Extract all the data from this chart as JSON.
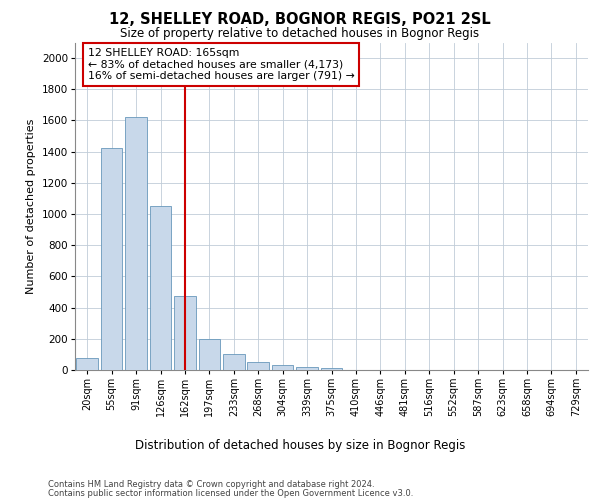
{
  "title_line1": "12, SHELLEY ROAD, BOGNOR REGIS, PO21 2SL",
  "title_line2": "Size of property relative to detached houses in Bognor Regis",
  "xlabel": "Distribution of detached houses by size in Bognor Regis",
  "ylabel": "Number of detached properties",
  "categories": [
    "20sqm",
    "55sqm",
    "91sqm",
    "126sqm",
    "162sqm",
    "197sqm",
    "233sqm",
    "268sqm",
    "304sqm",
    "339sqm",
    "375sqm",
    "410sqm",
    "446sqm",
    "481sqm",
    "516sqm",
    "552sqm",
    "587sqm",
    "623sqm",
    "658sqm",
    "694sqm",
    "729sqm"
  ],
  "values": [
    75,
    1425,
    1625,
    1050,
    475,
    200,
    100,
    50,
    30,
    20,
    10,
    0,
    0,
    0,
    0,
    0,
    0,
    0,
    0,
    0,
    0
  ],
  "bar_color": "#c8d8ea",
  "bar_edgecolor": "#6898bb",
  "vline_x_index": 4,
  "vline_color": "#cc0000",
  "annotation_text": "12 SHELLEY ROAD: 165sqm\n← 83% of detached houses are smaller (4,173)\n16% of semi-detached houses are larger (791) →",
  "annotation_box_facecolor": "#ffffff",
  "annotation_box_edgecolor": "#cc0000",
  "ylim": [
    0,
    2100
  ],
  "yticks": [
    0,
    200,
    400,
    600,
    800,
    1000,
    1200,
    1400,
    1600,
    1800,
    2000
  ],
  "background_color": "#ffffff",
  "grid_color": "#c0ccd8",
  "footer_line1": "Contains HM Land Registry data © Crown copyright and database right 2024.",
  "footer_line2": "Contains public sector information licensed under the Open Government Licence v3.0."
}
